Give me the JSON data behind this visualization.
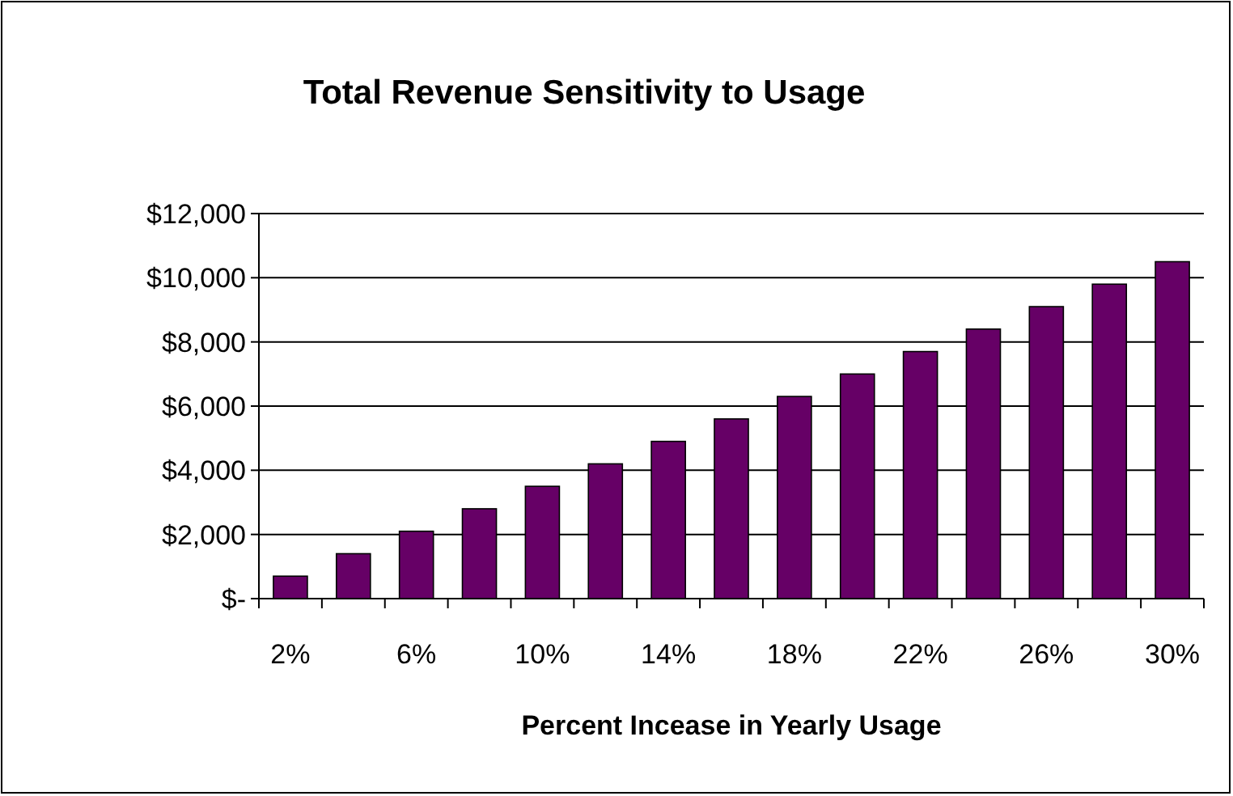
{
  "chart_data": {
    "type": "bar",
    "title": "Total Revenue Sensitivity to Usage",
    "xlabel": "Percent Incease in Yearly Usage",
    "categories": [
      "2%",
      null,
      "6%",
      null,
      "10%",
      null,
      "14%",
      null,
      "18%",
      null,
      "22%",
      null,
      "26%",
      null,
      "30%"
    ],
    "values": [
      700,
      1400,
      2100,
      2800,
      3500,
      4200,
      4900,
      5600,
      6300,
      7000,
      7700,
      8400,
      9100,
      9800,
      10500
    ],
    "color": "#660066",
    "ylim": [
      0,
      12000
    ],
    "yticks": [
      {
        "value": 0,
        "label": "$-"
      },
      {
        "value": 2000,
        "label": "$2,000"
      },
      {
        "value": 4000,
        "label": "$4,000"
      },
      {
        "value": 6000,
        "label": "$6,000"
      },
      {
        "value": 8000,
        "label": "$8,000"
      },
      {
        "value": 10000,
        "label": "$10,000"
      },
      {
        "value": 12000,
        "label": "$12,000"
      }
    ],
    "grid": "y"
  }
}
